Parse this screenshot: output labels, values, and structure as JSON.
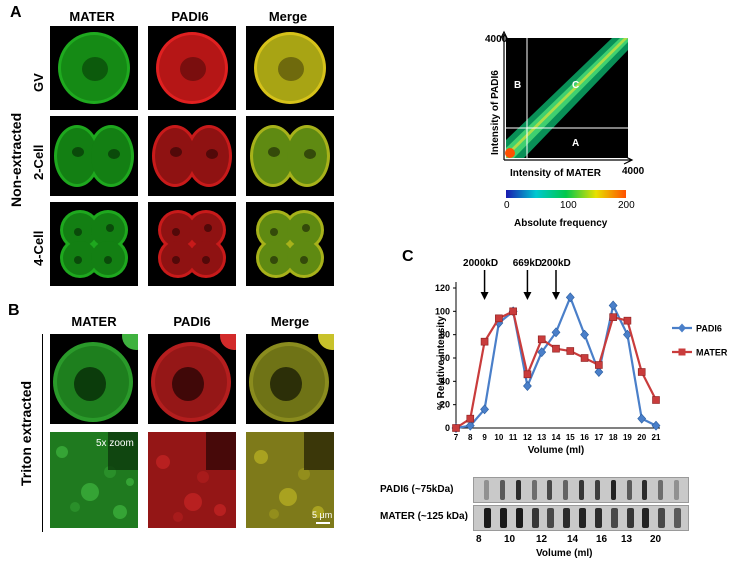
{
  "panel_letters": {
    "a": "A",
    "b": "B",
    "c": "C"
  },
  "panel_a": {
    "columns": [
      "MATER",
      "PADI6",
      "Merge"
    ],
    "rows": [
      "GV",
      "2-Cell",
      "4-Cell"
    ],
    "side_label": "Non-extracted"
  },
  "panel_b": {
    "columns": [
      "MATER",
      "PADI6",
      "Merge"
    ],
    "side_label": "Triton extracted",
    "zoom_label": "5x zoom",
    "scale_label": "5 μm"
  },
  "scatter": {
    "y_label": "Intensity of  PADI6",
    "x_label": "Intensity of  MATER",
    "y_max": "4000",
    "x_max": "4000",
    "regions": [
      "B",
      "C",
      "A"
    ],
    "colorbar_ticks": [
      "0",
      "100",
      "200"
    ],
    "colorbar_label": "Absolute frequency",
    "colors": {
      "low": "#1a1ab0",
      "mid1": "#00c8d0",
      "mid2": "#00c84a",
      "mid3": "#e8e000",
      "high": "#ff5000"
    }
  },
  "arrows": [
    {
      "label": "2000kD",
      "volume": 9
    },
    {
      "label": "669kD",
      "volume": 12
    },
    {
      "label": "200kD",
      "volume": 14
    }
  ],
  "chart_data": {
    "type": "line",
    "x": [
      7,
      8,
      9,
      10,
      11,
      12,
      13,
      14,
      15,
      16,
      17,
      18,
      19,
      20,
      21
    ],
    "x_tick_labels": [
      "7",
      "8",
      "9",
      "10",
      "11",
      "12",
      "13",
      "14",
      "15",
      "16",
      "17",
      "18",
      "19",
      "20",
      "21"
    ],
    "series": [
      {
        "name": "PADI6",
        "color": "#4a7fc9",
        "marker": "diamond",
        "values": [
          0,
          2,
          16,
          90,
          100,
          36,
          65,
          82,
          112,
          80,
          48,
          105,
          80,
          8,
          2
        ]
      },
      {
        "name": "MATER",
        "color": "#c93c3c",
        "marker": "square",
        "values": [
          0,
          8,
          74,
          94,
          100,
          46,
          76,
          68,
          66,
          60,
          54,
          95,
          92,
          48,
          24
        ]
      }
    ],
    "ylabel": "% Relative intensity",
    "xlabel": "Volume (ml)",
    "ylim": [
      0,
      120
    ],
    "xlim": [
      7,
      21
    ],
    "y_ticks": [
      "0",
      "20",
      "40",
      "60",
      "80",
      "100",
      "120"
    ],
    "legend_position": "right"
  },
  "blots": {
    "rows": [
      {
        "label": "PADI6 (~75kDa)",
        "bands": [
          0.3,
          0.6,
          0.85,
          0.5,
          0.7,
          0.55,
          0.8,
          0.75,
          0.9,
          0.6,
          0.85,
          0.5,
          0.3
        ]
      },
      {
        "label": "MATER (~125 kDa)",
        "bands": [
          0.95,
          0.95,
          0.95,
          0.8,
          0.7,
          0.85,
          0.9,
          0.85,
          0.7,
          0.8,
          0.9,
          0.7,
          0.6
        ]
      }
    ],
    "x_ticks": [
      "8",
      "10",
      "12",
      "14",
      "16",
      "13",
      "20"
    ],
    "x_label": "Volume (ml)"
  }
}
